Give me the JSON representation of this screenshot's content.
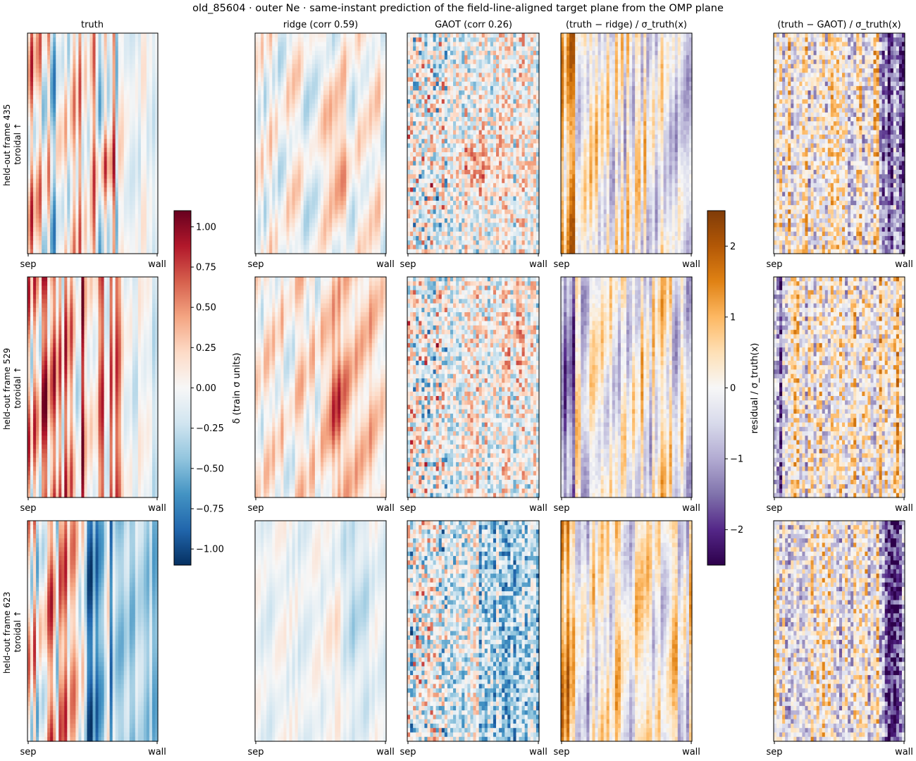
{
  "title": "old_85604 · outer Ne · same-instant prediction of the field-line-aligned target plane from the OMP plane",
  "chart_data": {
    "type": "heatmap",
    "columns": [
      {
        "key": "truth",
        "label": "truth",
        "cmap": "RdBu_r",
        "colorbar": "delta"
      },
      {
        "key": "ridge",
        "label": "ridge  (corr 0.59)",
        "cmap": "RdBu_r",
        "colorbar": "delta",
        "corr": 0.59
      },
      {
        "key": "gaot",
        "label": "GAOT  (corr 0.26)",
        "cmap": "RdBu_r",
        "colorbar": "delta",
        "corr": 0.26
      },
      {
        "key": "res_ridge",
        "label": "(truth − ridge) / σ_truth(x)",
        "cmap": "PuOr_r",
        "colorbar": "residual"
      },
      {
        "key": "res_gaot",
        "label": "(truth − GAOT) / σ_truth(x)",
        "cmap": "PuOr_r",
        "colorbar": "residual"
      }
    ],
    "rows": [
      {
        "label_line1": "held-out frame 435",
        "label_line2": "toroidal ↑",
        "frame": 435
      },
      {
        "label_line1": "held-out frame 529",
        "label_line2": "toroidal ↑",
        "frame": 529
      },
      {
        "label_line1": "held-out frame 623",
        "label_line2": "toroidal ↑",
        "frame": 623
      }
    ],
    "xlabel_left": "sep",
    "xlabel_right": "wall",
    "colorbars": {
      "delta": {
        "label": "δ (train σ units)",
        "range": [
          -1.1,
          1.1
        ],
        "ticks": [
          1.0,
          0.75,
          0.5,
          0.25,
          0.0,
          -0.25,
          -0.5,
          -0.75,
          -1.0
        ],
        "tick_labels": [
          "1.00",
          "0.75",
          "0.50",
          "0.25",
          "0.00",
          "−0.25",
          "−0.50",
          "−0.75",
          "−1.00"
        ],
        "colors": [
          "#053061",
          "#2166ac",
          "#4393c3",
          "#92c5de",
          "#d1e5f0",
          "#f7f7f7",
          "#fddbc7",
          "#f4a582",
          "#d6604d",
          "#b2182b",
          "#67001f"
        ]
      },
      "residual": {
        "label": "residual / σ_truth(x)",
        "range": [
          -2.5,
          2.5
        ],
        "ticks": [
          2,
          1,
          0,
          -1,
          -2
        ],
        "tick_labels": [
          "2",
          "1",
          "0",
          "−1",
          "−2"
        ],
        "colors": [
          "#2d004b",
          "#542788",
          "#8073ac",
          "#b2abd2",
          "#d8daeb",
          "#f7f7f7",
          "#fee0b6",
          "#fdb863",
          "#e08214",
          "#b35806",
          "#7f3b08"
        ]
      }
    }
  }
}
